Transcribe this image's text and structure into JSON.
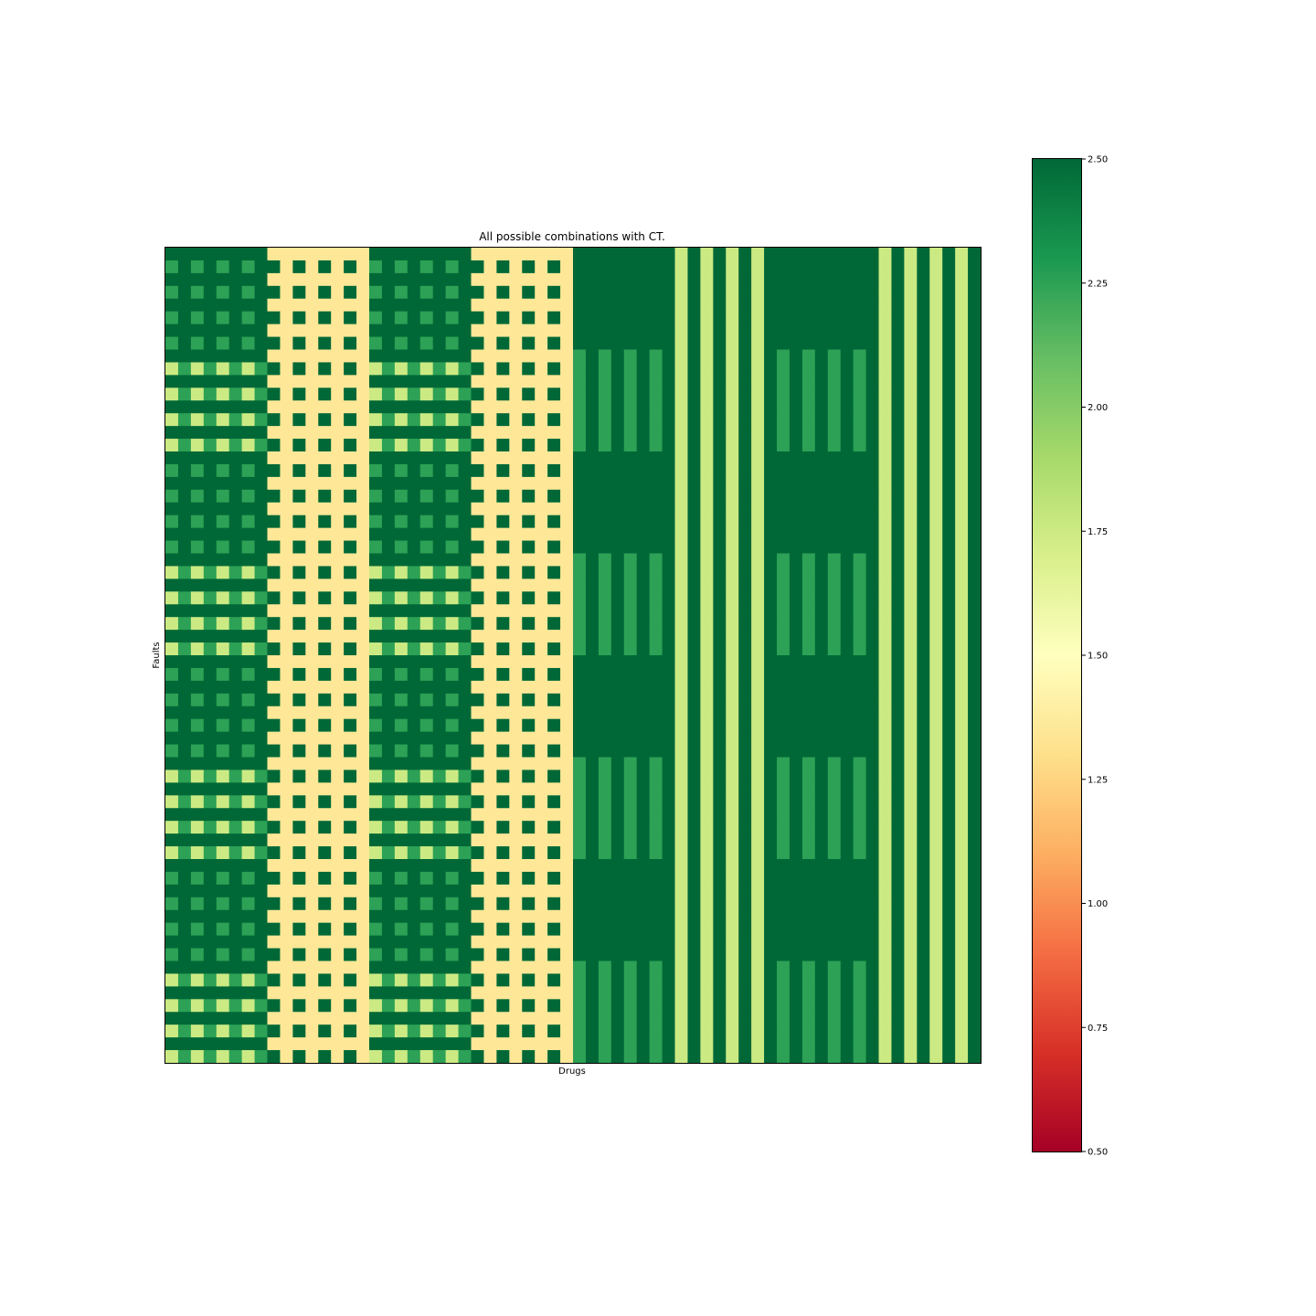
{
  "chart_data": {
    "type": "heatmap",
    "title": "All possible combinations with CT.",
    "xlabel": "Drugs",
    "ylabel": "Faults",
    "colormap": "RdYlGn",
    "vmin": 0.5,
    "vmax": 2.5,
    "n_cols": 64,
    "n_rows": 64,
    "values_note": "Periodic pattern of cell values: columns grouped in 8 blocks of 8",
    "colorbar_ticks": [
      "0.50",
      "0.75",
      "1.00",
      "1.25",
      "1.50",
      "1.75",
      "2.00",
      "2.25",
      "2.50"
    ],
    "block_values": {
      "deep": 2.5,
      "mid_green": 2.25,
      "light_yellow": 1.75,
      "pale": 1.35
    }
  }
}
